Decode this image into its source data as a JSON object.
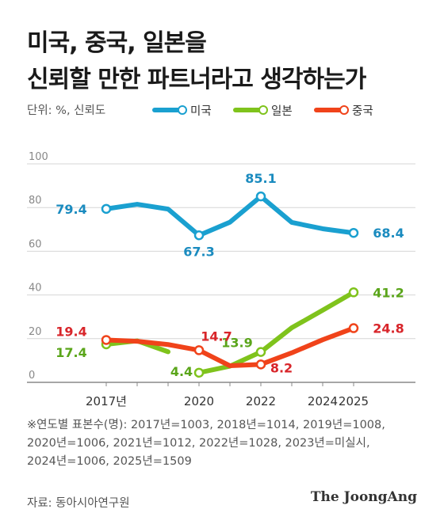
{
  "header": {
    "title_line1": "미국, 중국, 일본을",
    "title_line2": "신뢰할 만한 파트너라고 생각하는가"
  },
  "unit_label": "단위: %, 신뢰도",
  "legend": [
    {
      "name": "미국",
      "color": "#1aa0d0"
    },
    {
      "name": "일본",
      "color": "#7fc31c"
    },
    {
      "name": "중국",
      "color": "#f0431a"
    }
  ],
  "footnote_lines": [
    "※연도별 표본수(명): 2017년=1003, 2018년=1014, 2019년=1008,",
    "2020년=1006, 2021년=1012, 2022년=1028, 2023년=미실시,",
    "2024년=1006, 2025년=1509"
  ],
  "source": "자료: 동아시아연구원",
  "brand": "The JoongAng",
  "chart_data": {
    "type": "line",
    "x": [
      2017,
      2018,
      2019,
      2020,
      2021,
      2022,
      2023,
      2024,
      2025
    ],
    "x_tick_labels": [
      {
        "x": 2017,
        "label": "2017년"
      },
      {
        "x": 2020,
        "label": "2020"
      },
      {
        "x": 2022,
        "label": "2022"
      },
      {
        "x": 2024,
        "label": "2024"
      },
      {
        "x": 2025,
        "label": "2025"
      }
    ],
    "ylim": [
      0,
      100
    ],
    "y_ticks": [
      0,
      20,
      40,
      60,
      80,
      100
    ],
    "grid": true,
    "legend_position": "top",
    "series": [
      {
        "name": "미국",
        "color": "#1aa0d0",
        "label_color": "#1a8bbf",
        "values": [
          79.4,
          81.5,
          79.3,
          67.3,
          73.3,
          85.1,
          73.2,
          70.3,
          68.4
        ],
        "labels": [
          {
            "index": 0,
            "text": "79.4"
          },
          {
            "index": 3,
            "text": "67.3"
          },
          {
            "index": 5,
            "text": "85.1"
          },
          {
            "index": 8,
            "text": "68.4"
          }
        ]
      },
      {
        "name": "일본",
        "color": "#7fc31c",
        "label_color": "#5aa51a",
        "values": [
          17.4,
          19.0,
          14.0,
          4.4,
          7.4,
          13.9,
          25.0,
          33.0,
          41.2
        ],
        "labels": [
          {
            "index": 0,
            "text": "17.4"
          },
          {
            "index": 3,
            "text": "4.4"
          },
          {
            "index": 5,
            "text": "13.9"
          },
          {
            "index": 8,
            "text": "41.2"
          }
        ]
      },
      {
        "name": "중국",
        "color": "#f0431a",
        "label_color": "#d8252a",
        "values": [
          19.4,
          18.8,
          17.3,
          14.7,
          7.6,
          8.2,
          13.5,
          19.5,
          24.8
        ],
        "labels": [
          {
            "index": 0,
            "text": "19.4"
          },
          {
            "index": 3,
            "text": "14.7"
          },
          {
            "index": 5,
            "text": "8.2"
          },
          {
            "index": 8,
            "text": "24.8"
          }
        ]
      }
    ]
  }
}
